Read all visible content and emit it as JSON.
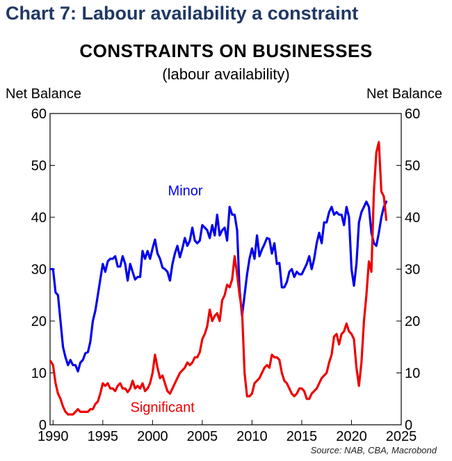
{
  "header": "Chart 7: Labour availability a constraint",
  "source": "Source: NAB, CBA, Macrobond",
  "colors": {
    "minor": "#0000ee",
    "significant": "#ee0000",
    "header": "#1f3864"
  },
  "chart_data": {
    "type": "line",
    "title": "CONSTRAINTS ON BUSINESSES",
    "subtitle": "(labour availability)",
    "ylabel_left": "Net Balance",
    "ylabel_right": "Net Balance",
    "xlim": [
      1989.7,
      2025
    ],
    "ylim": [
      0,
      60
    ],
    "x_ticks": [
      1990,
      1995,
      2000,
      2005,
      2010,
      2015,
      2020,
      2025
    ],
    "y_ticks": [
      0,
      10,
      20,
      30,
      40,
      50,
      60
    ],
    "grid": false,
    "series": [
      {
        "name": "Minor",
        "color": "#0000ee",
        "x": [
          1989.75,
          1990.0,
          1990.25,
          1990.5,
          1990.75,
          1991.0,
          1991.25,
          1991.5,
          1991.75,
          1992.0,
          1992.25,
          1992.5,
          1992.75,
          1993.0,
          1993.25,
          1993.5,
          1993.75,
          1994.0,
          1994.25,
          1994.5,
          1994.75,
          1995.0,
          1995.25,
          1995.5,
          1995.75,
          1996.0,
          1996.25,
          1996.5,
          1996.75,
          1997.0,
          1997.25,
          1997.5,
          1997.75,
          1998.0,
          1998.25,
          1998.5,
          1998.75,
          1999.0,
          1999.25,
          1999.5,
          1999.75,
          2000.0,
          2000.25,
          2000.5,
          2000.75,
          2001.0,
          2001.25,
          2001.5,
          2001.75,
          2002.0,
          2002.25,
          2002.5,
          2002.75,
          2003.0,
          2003.25,
          2003.5,
          2003.75,
          2004.0,
          2004.25,
          2004.5,
          2004.75,
          2005.0,
          2005.25,
          2005.5,
          2005.75,
          2006.0,
          2006.25,
          2006.5,
          2006.75,
          2007.0,
          2007.25,
          2007.5,
          2007.75,
          2008.0,
          2008.25,
          2008.5,
          2008.75,
          2009.0,
          2009.25,
          2009.5,
          2009.75,
          2010.0,
          2010.25,
          2010.5,
          2010.75,
          2011.0,
          2011.25,
          2011.5,
          2011.75,
          2012.0,
          2012.25,
          2012.5,
          2012.75,
          2013.0,
          2013.25,
          2013.5,
          2013.75,
          2014.0,
          2014.25,
          2014.5,
          2014.75,
          2015.0,
          2015.25,
          2015.5,
          2015.75,
          2016.0,
          2016.25,
          2016.5,
          2016.75,
          2017.0,
          2017.25,
          2017.5,
          2017.75,
          2018.0,
          2018.25,
          2018.5,
          2018.75,
          2019.0,
          2019.25,
          2019.5,
          2019.75,
          2020.0,
          2020.25,
          2020.5,
          2020.75,
          2021.0,
          2021.25,
          2021.5,
          2021.75,
          2022.0,
          2022.25,
          2022.5,
          2022.75,
          2023.0,
          2023.25,
          2023.5
        ],
        "values": [
          30,
          30,
          25.5,
          25,
          20,
          15,
          13,
          11.5,
          12.5,
          11.5,
          11.5,
          10.3,
          12,
          12.5,
          13.8,
          14,
          16,
          20,
          22,
          25,
          28,
          31,
          29.5,
          31.5,
          32,
          32,
          32.5,
          30.5,
          30.5,
          32.5,
          31,
          27.8,
          31,
          29.5,
          28,
          28.5,
          28.5,
          33.5,
          32,
          33.5,
          32,
          34,
          35.7,
          33,
          32,
          30.3,
          30,
          29.5,
          27.8,
          31,
          33,
          34.5,
          32.3,
          34,
          36,
          34.5,
          35.5,
          38,
          35.5,
          35,
          35.5,
          38.5,
          38,
          37.5,
          36,
          38.5,
          36.5,
          40.5,
          36.5,
          37.5,
          38,
          35.5,
          42,
          40.5,
          40.5,
          37.5,
          26,
          21,
          25,
          29,
          32,
          34,
          32,
          36.5,
          32.5,
          33.8,
          34.8,
          36,
          35.8,
          33,
          35,
          31,
          31.2,
          26.5,
          26.5,
          27.5,
          29.5,
          30,
          28.5,
          29.5,
          29,
          29,
          30,
          31,
          32.5,
          30,
          32,
          35,
          37,
          35,
          39,
          39,
          41,
          42,
          40.5,
          41,
          40.5,
          40.5,
          38.5,
          42,
          40,
          30,
          26.8,
          31,
          39,
          41,
          42,
          43,
          42,
          37,
          35,
          34.5,
          37,
          40,
          42,
          43
        ]
      },
      {
        "name": "Significant",
        "color": "#ee0000",
        "x": [
          1989.75,
          1990.0,
          1990.25,
          1990.5,
          1990.75,
          1991.0,
          1991.25,
          1991.5,
          1991.75,
          1992.0,
          1992.25,
          1992.5,
          1992.75,
          1993.0,
          1993.25,
          1993.5,
          1993.75,
          1994.0,
          1994.25,
          1994.5,
          1994.75,
          1995.0,
          1995.25,
          1995.5,
          1995.75,
          1996.0,
          1996.25,
          1996.5,
          1996.75,
          1997.0,
          1997.25,
          1997.5,
          1997.75,
          1998.0,
          1998.25,
          1998.5,
          1998.75,
          1999.0,
          1999.25,
          1999.5,
          1999.75,
          2000.0,
          2000.25,
          2000.5,
          2000.75,
          2001.0,
          2001.25,
          2001.5,
          2001.75,
          2002.0,
          2002.25,
          2002.5,
          2002.75,
          2003.0,
          2003.25,
          2003.5,
          2003.75,
          2004.0,
          2004.25,
          2004.5,
          2004.75,
          2005.0,
          2005.25,
          2005.5,
          2005.75,
          2006.0,
          2006.25,
          2006.5,
          2006.75,
          2007.0,
          2007.25,
          2007.5,
          2007.75,
          2008.0,
          2008.25,
          2008.5,
          2008.75,
          2009.0,
          2009.25,
          2009.5,
          2009.75,
          2010.0,
          2010.25,
          2010.5,
          2010.75,
          2011.0,
          2011.25,
          2011.5,
          2011.75,
          2012.0,
          2012.25,
          2012.5,
          2012.75,
          2013.0,
          2013.25,
          2013.5,
          2013.75,
          2014.0,
          2014.25,
          2014.5,
          2014.75,
          2015.0,
          2015.25,
          2015.5,
          2015.75,
          2016.0,
          2016.25,
          2016.5,
          2016.75,
          2017.0,
          2017.25,
          2017.5,
          2017.75,
          2018.0,
          2018.25,
          2018.5,
          2018.75,
          2019.0,
          2019.25,
          2019.5,
          2019.75,
          2020.0,
          2020.25,
          2020.5,
          2020.75,
          2021.0,
          2021.25,
          2021.5,
          2021.75,
          2022.0,
          2022.25,
          2022.5,
          2022.75,
          2023.0,
          2023.25,
          2023.5
        ],
        "values": [
          12.3,
          11.5,
          8,
          6,
          5,
          3.5,
          2.5,
          2,
          2,
          2,
          2.5,
          3,
          2.5,
          2.5,
          2.5,
          2.5,
          3,
          3,
          4,
          4.5,
          6,
          8,
          7.5,
          8,
          7,
          7,
          6.5,
          7.5,
          8,
          7,
          7,
          6.3,
          7,
          8.5,
          7,
          7.5,
          7,
          8,
          6.5,
          7,
          8,
          10,
          13.5,
          11,
          9,
          9.5,
          8,
          6.5,
          6,
          7,
          8,
          9,
          10,
          10.5,
          11,
          12,
          11.5,
          12,
          13,
          13,
          14,
          16.5,
          17.5,
          19,
          22.2,
          20,
          21,
          21.5,
          20,
          24,
          25,
          27,
          26.5,
          28,
          32.5,
          29,
          25,
          22,
          10,
          5.5,
          5.5,
          6,
          8,
          8.5,
          9,
          10,
          11,
          11.5,
          11,
          13.5,
          13,
          13,
          12.5,
          10,
          8.5,
          8,
          7,
          6,
          5.5,
          6,
          7,
          7,
          6.5,
          5,
          5,
          6,
          6.5,
          7,
          8,
          9,
          9.5,
          10,
          12,
          13.5,
          17,
          17.5,
          15.5,
          17.5,
          18,
          19.5,
          18,
          17.5,
          16.5,
          11,
          7.5,
          12,
          20,
          25,
          31.5,
          29.5,
          45,
          52.5,
          54.5,
          45,
          44,
          39.5
        ]
      }
    ],
    "annotations": [
      {
        "text": "Minor",
        "x": 2003.3,
        "y": 44.2,
        "series": 0
      },
      {
        "text": "Significant",
        "x": 2001.0,
        "y": 2.5,
        "series": 1
      }
    ]
  }
}
